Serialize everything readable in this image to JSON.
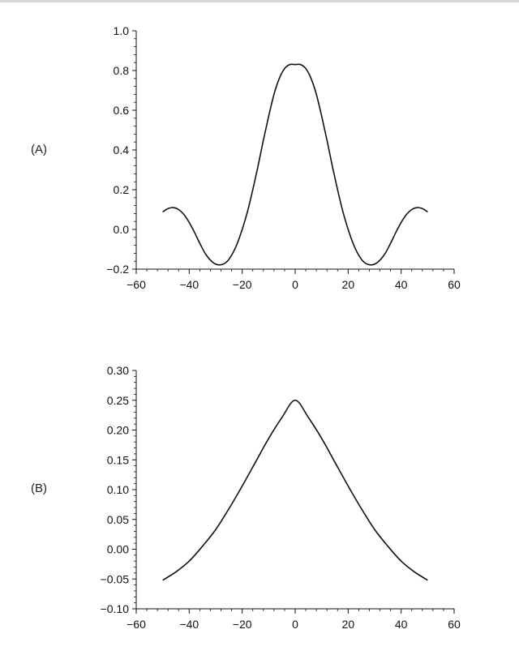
{
  "chart_data": [
    {
      "panel_label": "(A)",
      "type": "line",
      "xlim": [
        -60,
        60
      ],
      "ylim": [
        -0.2,
        1.0
      ],
      "x_ticks": [
        -60,
        -40,
        -20,
        0,
        20,
        40,
        60
      ],
      "x_tick_labels": [
        "−60",
        "−40",
        "−20",
        "0",
        "20",
        "40",
        "60"
      ],
      "y_ticks": [
        -0.2,
        0.0,
        0.2,
        0.4,
        0.6,
        0.8,
        1.0
      ],
      "y_tick_labels": [
        "−0.2",
        "0.0",
        "0.2",
        "0.4",
        "0.6",
        "0.8",
        "1.0"
      ],
      "x": [
        -50,
        -48,
        -46,
        -44,
        -42,
        -40,
        -38,
        -36,
        -34,
        -32,
        -30,
        -28,
        -26,
        -24,
        -22,
        -20,
        -18,
        -16,
        -14,
        -12,
        -10,
        -8,
        -6,
        -4,
        -2,
        0,
        2,
        4,
        6,
        8,
        10,
        12,
        14,
        16,
        18,
        20,
        22,
        24,
        26,
        28,
        30,
        32,
        34,
        36,
        38,
        40,
        42,
        44,
        46,
        48,
        50
      ],
      "y": [
        0.088,
        0.105,
        0.11,
        0.1,
        0.075,
        0.035,
        -0.015,
        -0.07,
        -0.12,
        -0.155,
        -0.175,
        -0.178,
        -0.165,
        -0.13,
        -0.075,
        0.0,
        0.09,
        0.2,
        0.32,
        0.45,
        0.57,
        0.68,
        0.76,
        0.81,
        0.83,
        0.83,
        0.83,
        0.81,
        0.76,
        0.68,
        0.57,
        0.45,
        0.32,
        0.2,
        0.09,
        0.0,
        -0.075,
        -0.13,
        -0.165,
        -0.178,
        -0.175,
        -0.155,
        -0.12,
        -0.07,
        -0.015,
        0.035,
        0.075,
        0.1,
        0.11,
        0.105,
        0.088
      ]
    },
    {
      "panel_label": "(B)",
      "type": "line",
      "xlim": [
        -60,
        60
      ],
      "ylim": [
        -0.1,
        0.3
      ],
      "x_ticks": [
        -60,
        -40,
        -20,
        0,
        20,
        40,
        60
      ],
      "x_tick_labels": [
        "−60",
        "−40",
        "−20",
        "0",
        "20",
        "40",
        "60"
      ],
      "y_ticks": [
        -0.1,
        -0.05,
        0.0,
        0.05,
        0.1,
        0.15,
        0.2,
        0.25,
        0.3
      ],
      "y_tick_labels": [
        "−0.10",
        "−0.05",
        "0.00",
        "0.05",
        "0.10",
        "0.15",
        "0.20",
        "0.25",
        "0.30"
      ],
      "x": [
        -50,
        -45,
        -40,
        -35,
        -30,
        -25,
        -20,
        -15,
        -10,
        -5,
        0,
        5,
        10,
        15,
        20,
        25,
        30,
        35,
        40,
        45,
        50
      ],
      "y": [
        -0.052,
        -0.038,
        -0.02,
        0.005,
        0.033,
        0.068,
        0.106,
        0.146,
        0.186,
        0.221,
        0.25,
        0.221,
        0.186,
        0.146,
        0.106,
        0.068,
        0.033,
        0.005,
        -0.02,
        -0.038,
        -0.052
      ]
    }
  ]
}
